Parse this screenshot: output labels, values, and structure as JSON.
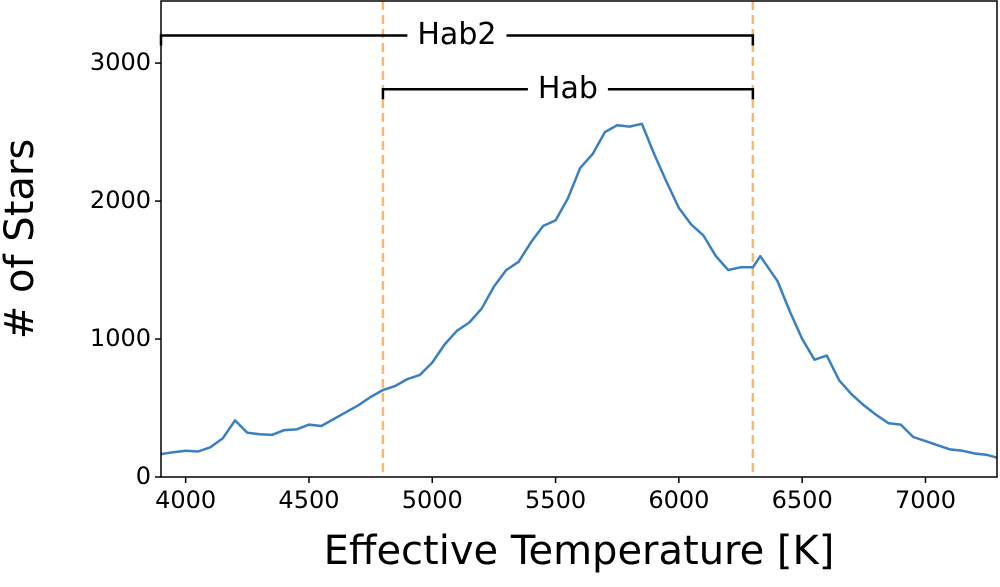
{
  "chart_data": {
    "type": "line",
    "xlabel": "Effective Temperature [K]",
    "ylabel": "# of Stars",
    "x": [
      3900,
      3950,
      4000,
      4050,
      4100,
      4150,
      4200,
      4250,
      4300,
      4350,
      4400,
      4450,
      4500,
      4550,
      4600,
      4650,
      4700,
      4750,
      4800,
      4850,
      4900,
      4950,
      5000,
      5050,
      5100,
      5150,
      5200,
      5250,
      5300,
      5350,
      5400,
      5450,
      5500,
      5550,
      5600,
      5650,
      5700,
      5750,
      5800,
      5850,
      5900,
      5950,
      6000,
      6050,
      6100,
      6150,
      6200,
      6250,
      6300,
      6330,
      6400,
      6450,
      6500,
      6550,
      6600,
      6650,
      6700,
      6750,
      6800,
      6850,
      6900,
      6950,
      7000,
      7050,
      7100,
      7150,
      7200,
      7250,
      7290
    ],
    "series": [
      {
        "color": "#3a7fbf",
        "values": [
          165,
          180,
          190,
          185,
          215,
          280,
          410,
          320,
          310,
          305,
          340,
          345,
          380,
          370,
          420,
          470,
          520,
          580,
          630,
          660,
          710,
          740,
          830,
          960,
          1060,
          1120,
          1220,
          1380,
          1500,
          1560,
          1700,
          1820,
          1860,
          2020,
          2240,
          2340,
          2500,
          2550,
          2540,
          2560,
          2340,
          2140,
          1950,
          1830,
          1750,
          1600,
          1500,
          1520,
          1520,
          1600,
          1420,
          1200,
          1000,
          850,
          880,
          700,
          600,
          520,
          450,
          390,
          380,
          290,
          260,
          230,
          200,
          190,
          170,
          160,
          140
        ]
      }
    ],
    "xlim": [
      3900,
      7290
    ],
    "ylim": [
      0,
      3450
    ],
    "xticks": [
      4000,
      4500,
      5000,
      5500,
      6000,
      6500,
      7000
    ],
    "yticks": [
      0,
      1000,
      2000,
      3000
    ],
    "vlines": {
      "color": "#f7b96e",
      "x": [
        4800,
        6300
      ]
    },
    "annotations": [
      {
        "text": "Hab2",
        "x": [
          3900,
          6300
        ],
        "y": 3200
      },
      {
        "text": "Hab",
        "x": [
          4800,
          6300
        ],
        "y": 2810
      }
    ]
  }
}
